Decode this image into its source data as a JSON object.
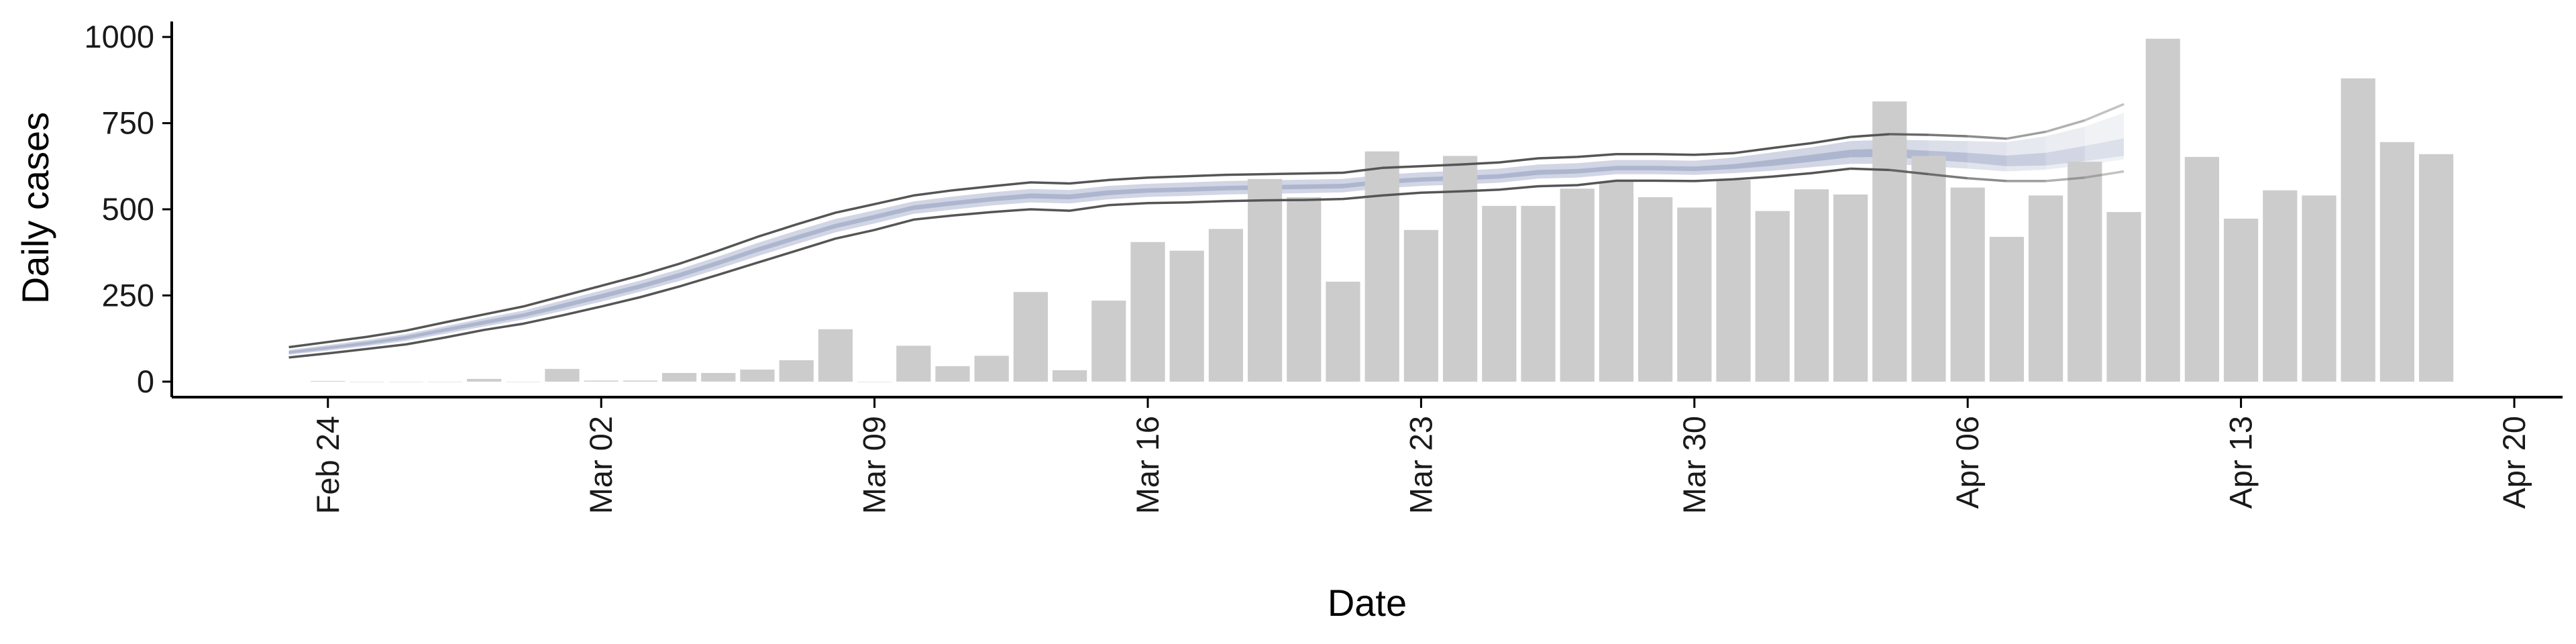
{
  "chart_data": {
    "type": "bar",
    "title": "",
    "xlabel": "Date",
    "ylabel": "Daily cases",
    "x_ticks": [
      "Feb 24",
      "Mar 02",
      "Mar 09",
      "Mar 16",
      "Mar 23",
      "Mar 30",
      "Apr 06",
      "Apr 13",
      "Apr 20"
    ],
    "x_tick_dates": [
      "2020-02-24",
      "2020-03-02",
      "2020-03-09",
      "2020-03-16",
      "2020-03-23",
      "2020-03-30",
      "2020-04-06",
      "2020-04-13",
      "2020-04-20"
    ],
    "y_ticks": [
      0,
      250,
      500,
      750,
      1000
    ],
    "xlim": [
      "2020-02-20",
      "2020-04-20"
    ],
    "ylim": [
      -45,
      1045
    ],
    "grid": false,
    "colors": {
      "bars": "#cccccc",
      "outer_band": "#c9cedf",
      "inner_band": "#a9b2cc",
      "bound_lines": "#555555"
    },
    "bars": {
      "dates": [
        "2020-02-24",
        "2020-02-25",
        "2020-02-26",
        "2020-02-27",
        "2020-02-28",
        "2020-02-29",
        "2020-03-01",
        "2020-03-02",
        "2020-03-03",
        "2020-03-04",
        "2020-03-05",
        "2020-03-06",
        "2020-03-07",
        "2020-03-08",
        "2020-03-09",
        "2020-03-10",
        "2020-03-11",
        "2020-03-12",
        "2020-03-13",
        "2020-03-14",
        "2020-03-15",
        "2020-03-16",
        "2020-03-17",
        "2020-03-18",
        "2020-03-19",
        "2020-03-20",
        "2020-03-21",
        "2020-03-22",
        "2020-03-23",
        "2020-03-24",
        "2020-03-25",
        "2020-03-26",
        "2020-03-27",
        "2020-03-28",
        "2020-03-29",
        "2020-03-30",
        "2020-03-31",
        "2020-04-01",
        "2020-04-02",
        "2020-04-03",
        "2020-04-04",
        "2020-04-05",
        "2020-04-06",
        "2020-04-07",
        "2020-04-08",
        "2020-04-09",
        "2020-04-10",
        "2020-04-11",
        "2020-04-12",
        "2020-04-13",
        "2020-04-14",
        "2020-04-15",
        "2020-04-16",
        "2020-04-17",
        "2020-04-18"
      ],
      "values": [
        2,
        0,
        0,
        0,
        8,
        0,
        37,
        3,
        3,
        25,
        25,
        35,
        62,
        152,
        0,
        104,
        45,
        75,
        260,
        33,
        235,
        405,
        380,
        443,
        588,
        535,
        290,
        668,
        440,
        655,
        510,
        510,
        560,
        580,
        535,
        505,
        585,
        495,
        558,
        543,
        813,
        655,
        563,
        420,
        540,
        638,
        492,
        995,
        652,
        473,
        555,
        540,
        880,
        695,
        660
      ]
    },
    "series": [
      {
        "name": "",
        "dates": [
          "2020-02-23",
          "2020-02-24",
          "2020-02-25",
          "2020-02-26",
          "2020-02-27",
          "2020-02-28",
          "2020-02-29",
          "2020-03-01",
          "2020-03-02",
          "2020-03-03",
          "2020-03-04",
          "2020-03-05",
          "2020-03-06",
          "2020-03-07",
          "2020-03-08",
          "2020-03-09",
          "2020-03-10",
          "2020-03-11",
          "2020-03-12",
          "2020-03-13",
          "2020-03-14",
          "2020-03-15",
          "2020-03-16",
          "2020-03-17",
          "2020-03-18",
          "2020-03-19",
          "2020-03-20",
          "2020-03-21",
          "2020-03-22",
          "2020-03-23",
          "2020-03-24",
          "2020-03-25",
          "2020-03-26",
          "2020-03-27",
          "2020-03-28",
          "2020-03-29",
          "2020-03-30",
          "2020-03-31",
          "2020-04-01",
          "2020-04-02",
          "2020-04-03",
          "2020-04-04",
          "2020-04-05",
          "2020-04-06",
          "2020-04-07",
          "2020-04-08",
          "2020-04-09",
          "2020-04-10"
        ],
        "upper": [
          100,
          115,
          130,
          148,
          172,
          195,
          218,
          248,
          278,
          308,
          342,
          380,
          420,
          456,
          490,
          515,
          540,
          555,
          567,
          578,
          575,
          585,
          592,
          596,
          600,
          602,
          604,
          606,
          620,
          625,
          630,
          636,
          648,
          652,
          660,
          660,
          658,
          663,
          678,
          692,
          710,
          718,
          716,
          712,
          705,
          725,
          758,
          805
        ],
        "lower": [
          70,
          82,
          95,
          108,
          128,
          150,
          168,
          192,
          218,
          245,
          276,
          310,
          345,
          380,
          415,
          440,
          470,
          482,
          492,
          500,
          496,
          512,
          518,
          520,
          524,
          526,
          527,
          530,
          540,
          548,
          552,
          557,
          567,
          570,
          583,
          583,
          582,
          587,
          595,
          605,
          618,
          614,
          602,
          590,
          582,
          582,
          592,
          610
        ],
        "median": [
          85,
          98,
          112,
          128,
          150,
          172,
          193,
          220,
          248,
          277,
          309,
          345,
          383,
          418,
          452,
          478,
          505,
          518,
          530,
          539,
          536,
          548,
          555,
          558,
          562,
          564,
          566,
          568,
          580,
          587,
          591,
          596,
          607,
          611,
          620,
          620,
          618,
          624,
          635,
          648,
          662,
          664,
          657,
          650,
          640,
          645,
          662,
          680
        ],
        "outer_band_upper": [
          92,
          106,
          121,
          138,
          161,
          184,
          206,
          235,
          264,
          293,
          326,
          363,
          402,
          438,
          472,
          497,
          523,
          537,
          549,
          559,
          556,
          568,
          574,
          578,
          582,
          584,
          586,
          588,
          600,
          607,
          612,
          618,
          630,
          634,
          643,
          643,
          641,
          650,
          665,
          680,
          698,
          702,
          700,
          698,
          695,
          712,
          740,
          780
        ],
        "outer_band_lower": [
          78,
          90,
          103,
          118,
          139,
          160,
          180,
          205,
          232,
          261,
          292,
          327,
          364,
          399,
          433,
          459,
          487,
          499,
          511,
          520,
          517,
          529,
          536,
          539,
          543,
          545,
          547,
          549,
          561,
          568,
          572,
          577,
          589,
          592,
          602,
          602,
          600,
          605,
          612,
          622,
          632,
          632,
          625,
          618,
          610,
          615,
          628,
          645
        ],
        "inner_band_upper": [
          89,
          102,
          116,
          133,
          155,
          177,
          198,
          226,
          254,
          283,
          315,
          351,
          389,
          424,
          458,
          484,
          511,
          524,
          536,
          546,
          543,
          555,
          561,
          564,
          568,
          570,
          572,
          574,
          586,
          593,
          597,
          602,
          614,
          617,
          626,
          626,
          624,
          631,
          644,
          658,
          673,
          676,
          670,
          664,
          656,
          664,
          684,
          706
        ],
        "inner_band_lower": [
          81,
          94,
          107,
          123,
          145,
          166,
          187,
          213,
          241,
          270,
          302,
          338,
          376,
          411,
          445,
          471,
          498,
          511,
          523,
          532,
          529,
          541,
          548,
          551,
          555,
          557,
          559,
          561,
          573,
          580,
          584,
          589,
          600,
          604,
          613,
          613,
          611,
          617,
          626,
          638,
          651,
          652,
          644,
          636,
          625,
          627,
          640,
          655
        ]
      }
    ]
  }
}
